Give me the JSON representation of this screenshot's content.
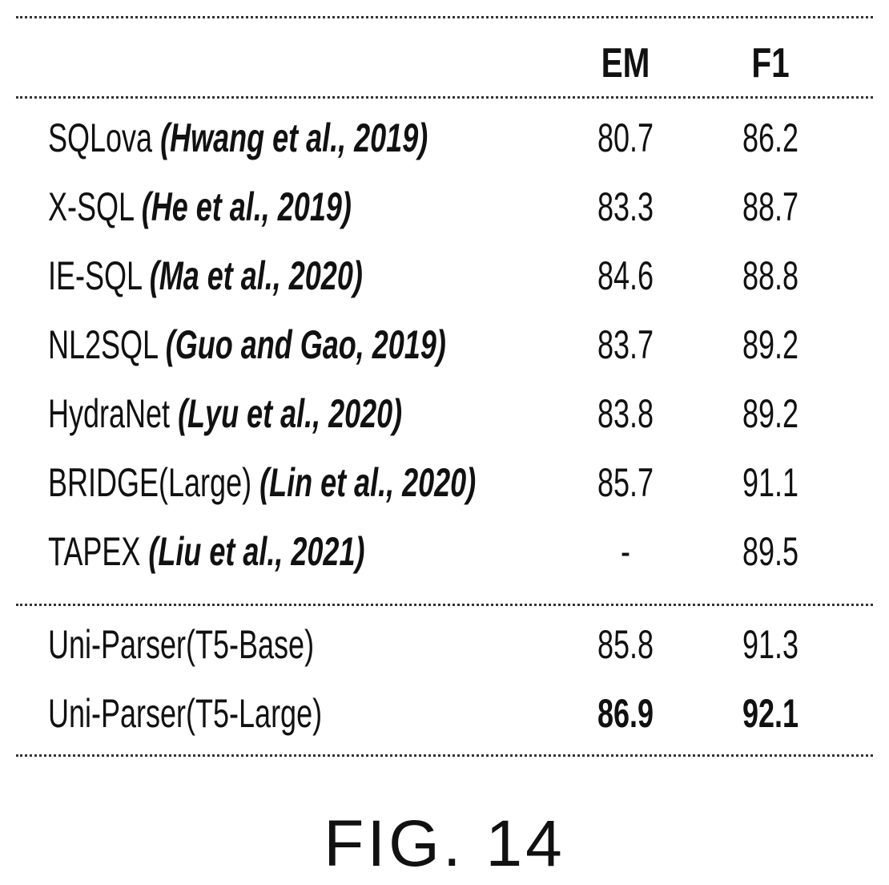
{
  "table": {
    "header": {
      "col_em": "EM",
      "col_f1": "F1"
    },
    "rows": [
      {
        "model": "SQLova",
        "citation": "(Hwang et al., 2019)",
        "em": "80.7",
        "f1": "86.2"
      },
      {
        "model": "X-SQL",
        "citation": "(He et al., 2019)",
        "em": "83.3",
        "f1": "88.7"
      },
      {
        "model": "IE-SQL",
        "citation": "(Ma et al., 2020)",
        "em": "84.6",
        "f1": "88.8"
      },
      {
        "model": "NL2SQL",
        "citation": "(Guo and Gao, 2019)",
        "em": "83.7",
        "f1": "89.2"
      },
      {
        "model": "HydraNet",
        "citation": "(Lyu et al., 2020)",
        "em": "83.8",
        "f1": "89.2"
      },
      {
        "model": "BRIDGE(Large)",
        "citation": "(Lin et al., 2020)",
        "em": "85.7",
        "f1": "91.1"
      },
      {
        "model": "TAPEX ",
        "citation": "(Liu et al., 2021)",
        "em": "-",
        "f1": "89.5"
      }
    ],
    "ours": [
      {
        "model": "Uni-Parser(T5-Base)",
        "em": "85.8",
        "f1": "91.3"
      },
      {
        "model": "Uni-Parser(T5-Large)",
        "em": "86.9",
        "f1": "92.1"
      }
    ]
  },
  "caption": "FIG. 14"
}
